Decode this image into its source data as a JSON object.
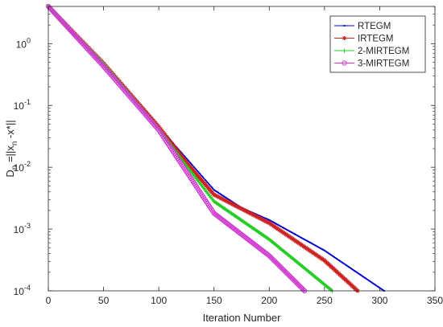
{
  "chart_data": {
    "type": "line",
    "xlabel": "Iteration Number",
    "ylabel_parts": [
      "D",
      "n",
      " =||x",
      "n",
      " -x*||"
    ],
    "xlim": [
      0,
      350
    ],
    "ylim": [
      0.0001,
      4
    ],
    "yscale": "log",
    "grid": false,
    "legend_position": "top-right",
    "x_ticks": [
      0,
      50,
      100,
      150,
      200,
      250,
      300,
      350
    ],
    "x_tick_labels": [
      "0",
      "50",
      "100",
      "150",
      "200",
      "250",
      "300",
      "350"
    ],
    "y_ticks": [
      {
        "value": 1,
        "base": "10",
        "exp": "0"
      },
      {
        "value": 0.1,
        "base": "10",
        "exp": "-1"
      },
      {
        "value": 0.01,
        "base": "10",
        "exp": "-2"
      },
      {
        "value": 0.001,
        "base": "10",
        "exp": "-3"
      },
      {
        "value": 0.0001,
        "base": "10",
        "exp": "-4"
      }
    ],
    "series": [
      {
        "name": "RTEGM",
        "color": "#0000cc",
        "marker": "dot",
        "end_x": 304,
        "points": [
          [
            0,
            4
          ],
          [
            50,
            0.48
          ],
          [
            100,
            0.045
          ],
          [
            150,
            0.0043
          ],
          [
            175,
            0.0022
          ],
          [
            200,
            0.0014
          ],
          [
            250,
            0.00045
          ],
          [
            304,
            0.0001
          ]
        ]
      },
      {
        "name": "IRTEGM",
        "color": "#cc2222",
        "marker": "star",
        "end_x": 280,
        "points": [
          [
            0,
            4
          ],
          [
            50,
            0.48
          ],
          [
            100,
            0.045
          ],
          [
            125,
            0.012
          ],
          [
            150,
            0.0036
          ],
          [
            200,
            0.00125
          ],
          [
            250,
            0.00031
          ],
          [
            280,
            0.0001
          ]
        ]
      },
      {
        "name": "2-MIRTEGM",
        "color": "#22cc22",
        "marker": "plus",
        "end_x": 257,
        "points": [
          [
            0,
            4
          ],
          [
            50,
            0.47
          ],
          [
            100,
            0.042
          ],
          [
            125,
            0.0105
          ],
          [
            150,
            0.0028
          ],
          [
            200,
            0.00068
          ],
          [
            257,
            0.0001
          ]
        ]
      },
      {
        "name": "3-MIRTEGM",
        "color": "#d23cd2",
        "marker": "circle",
        "end_x": 232,
        "points": [
          [
            0,
            4
          ],
          [
            50,
            0.43
          ],
          [
            100,
            0.04
          ],
          [
            125,
            0.0085
          ],
          [
            150,
            0.0018
          ],
          [
            200,
            0.00037
          ],
          [
            232,
            0.0001
          ]
        ]
      }
    ]
  }
}
